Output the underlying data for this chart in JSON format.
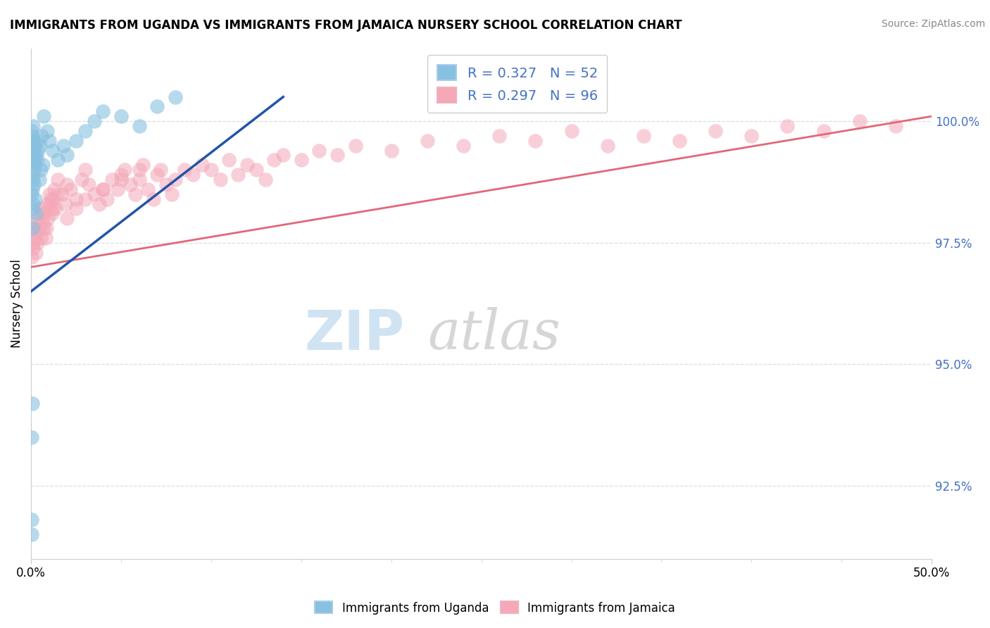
{
  "title": "IMMIGRANTS FROM UGANDA VS IMMIGRANTS FROM JAMAICA NURSERY SCHOOL CORRELATION CHART",
  "source": "Source: ZipAtlas.com",
  "ylabel": "Nursery School",
  "ytick_vals": [
    92.5,
    95.0,
    97.5,
    100.0
  ],
  "ytick_labels": [
    "92.5%",
    "95.0%",
    "97.5%",
    "100.0%"
  ],
  "xlim": [
    0.0,
    50.0
  ],
  "ylim": [
    91.0,
    101.5
  ],
  "legend_uganda": "Immigrants from Uganda",
  "legend_jamaica": "Immigrants from Jamaica",
  "R_uganda": 0.327,
  "N_uganda": 52,
  "R_jamaica": 0.297,
  "N_jamaica": 96,
  "color_uganda": "#88c0e0",
  "color_jamaica": "#f4a8b8",
  "line_color_uganda": "#2255aa",
  "line_color_jamaica": "#e06878",
  "watermark_zip_color": "#c8dff0",
  "watermark_atlas_color": "#c0c0c0",
  "grid_color": "#dddddd",
  "title_fontsize": 12,
  "source_fontsize": 10,
  "tick_label_color": "#4472c4",
  "legend_text_color": "#4472c4",
  "uganda_x": [
    0.05,
    0.05,
    0.05,
    0.08,
    0.08,
    0.1,
    0.1,
    0.1,
    0.12,
    0.12,
    0.15,
    0.15,
    0.18,
    0.2,
    0.2,
    0.25,
    0.3,
    0.35,
    0.4,
    0.5,
    0.6,
    0.7,
    0.9,
    1.0,
    1.2,
    1.5,
    1.8,
    2.0,
    2.5,
    3.0,
    3.5,
    4.0,
    5.0,
    6.0,
    7.0,
    8.0,
    0.05,
    0.06,
    0.07,
    0.09,
    0.11,
    0.13,
    0.16,
    0.22,
    0.28,
    0.45,
    0.55,
    0.65,
    0.08,
    0.05,
    0.05,
    0.05
  ],
  "uganda_y": [
    99.6,
    99.4,
    99.8,
    99.2,
    99.7,
    99.5,
    99.3,
    99.9,
    98.8,
    99.6,
    99.4,
    99.0,
    99.2,
    99.5,
    99.1,
    99.3,
    99.6,
    99.2,
    99.4,
    99.5,
    99.7,
    100.1,
    99.8,
    99.6,
    99.4,
    99.2,
    99.5,
    99.3,
    99.6,
    99.8,
    100.0,
    100.2,
    100.1,
    99.9,
    100.3,
    100.5,
    98.5,
    98.2,
    97.8,
    98.6,
    98.9,
    98.3,
    98.7,
    98.4,
    98.1,
    98.8,
    99.0,
    99.1,
    94.2,
    93.5,
    91.5,
    91.8
  ],
  "jamaica_x": [
    0.05,
    0.1,
    0.15,
    0.2,
    0.3,
    0.4,
    0.5,
    0.6,
    0.7,
    0.8,
    0.9,
    1.0,
    1.1,
    1.2,
    1.3,
    1.5,
    1.7,
    1.9,
    2.0,
    2.2,
    2.5,
    2.8,
    3.0,
    3.2,
    3.5,
    3.8,
    4.0,
    4.2,
    4.5,
    4.8,
    5.0,
    5.2,
    5.5,
    5.8,
    6.0,
    6.2,
    6.5,
    6.8,
    7.0,
    7.2,
    7.5,
    7.8,
    8.0,
    8.5,
    9.0,
    9.5,
    10.0,
    10.5,
    11.0,
    11.5,
    12.0,
    12.5,
    13.0,
    13.5,
    14.0,
    15.0,
    16.0,
    17.0,
    18.0,
    20.0,
    22.0,
    24.0,
    26.0,
    28.0,
    30.0,
    32.0,
    34.0,
    36.0,
    38.0,
    40.0,
    42.0,
    44.0,
    46.0,
    48.0,
    0.05,
    0.12,
    0.18,
    0.25,
    0.35,
    0.45,
    0.55,
    0.65,
    0.75,
    0.85,
    0.95,
    1.05,
    1.15,
    1.25,
    1.35,
    1.45,
    2.0,
    2.5,
    3.0,
    4.0,
    5.0,
    6.0
  ],
  "jamaica_y": [
    97.8,
    97.5,
    97.6,
    97.9,
    97.7,
    98.0,
    98.2,
    98.1,
    97.8,
    97.6,
    98.3,
    98.5,
    98.4,
    98.2,
    98.6,
    98.8,
    98.5,
    98.3,
    98.7,
    98.6,
    98.4,
    98.8,
    99.0,
    98.7,
    98.5,
    98.3,
    98.6,
    98.4,
    98.8,
    98.6,
    98.9,
    99.0,
    98.7,
    98.5,
    98.8,
    99.1,
    98.6,
    98.4,
    98.9,
    99.0,
    98.7,
    98.5,
    98.8,
    99.0,
    98.9,
    99.1,
    99.0,
    98.8,
    99.2,
    98.9,
    99.1,
    99.0,
    98.8,
    99.2,
    99.3,
    99.2,
    99.4,
    99.3,
    99.5,
    99.4,
    99.6,
    99.5,
    99.7,
    99.6,
    99.8,
    99.5,
    99.7,
    99.6,
    99.8,
    99.7,
    99.9,
    99.8,
    100.0,
    99.9,
    97.2,
    97.4,
    97.6,
    97.3,
    97.5,
    97.8,
    97.6,
    97.9,
    98.1,
    97.8,
    98.0,
    98.3,
    98.1,
    98.4,
    98.2,
    98.5,
    98.0,
    98.2,
    98.4,
    98.6,
    98.8,
    99.0
  ]
}
